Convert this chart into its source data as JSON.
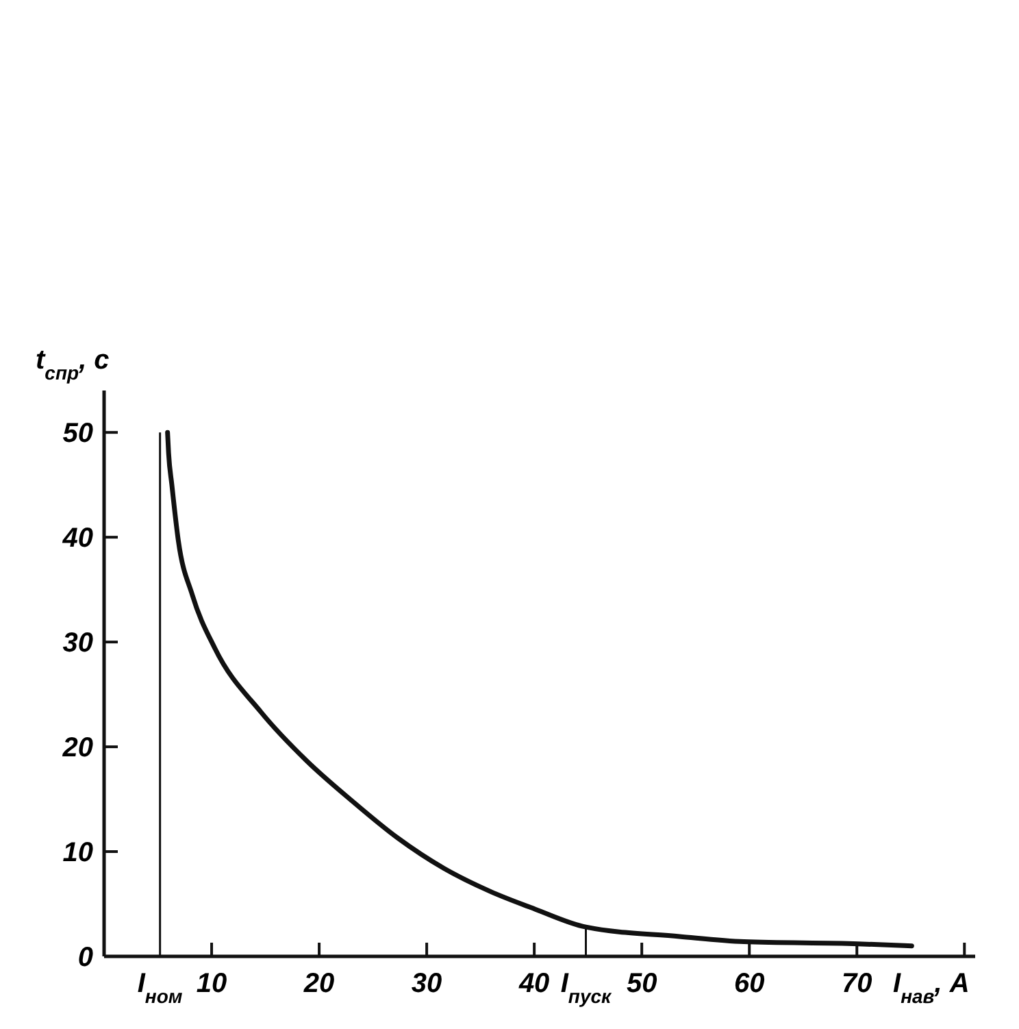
{
  "chart_data": {
    "type": "line",
    "xlabel": "I$_{нав}$, A",
    "ylabel": "t$_{спр}$, c",
    "series": [
      {
        "color": "#111111",
        "x": [
          5.9,
          6.0,
          6.3,
          6.9,
          8.2,
          10.3,
          14.6,
          18.8,
          23.1,
          27.3,
          31.6,
          35.9,
          40.1,
          44.8,
          53.5,
          59.5,
          70.1,
          75.1
        ],
        "values": [
          50,
          48,
          45,
          39.7,
          34.5,
          29.4,
          23.3,
          18.7,
          14.8,
          11.3,
          8.4,
          6.2,
          4.5,
          2.8,
          1.9,
          1.4,
          1.2,
          1.0
        ]
      }
    ],
    "xlim": [
      0,
      81
    ],
    "ylim": [
      0,
      54
    ],
    "xticks": [
      10,
      20,
      30,
      40,
      50,
      60,
      70,
      {
        "value": 80,
        "label": null
      }
    ],
    "yticks": [
      0,
      10,
      20,
      30,
      40,
      50
    ],
    "ref_lines": [
      {
        "axis": "x",
        "value": 5.2,
        "label": "I$_{ном}$",
        "color": "#111111"
      },
      {
        "axis": "x",
        "value": 44.8,
        "label": "I$_{пуск}$",
        "color": "#111111"
      }
    ],
    "grid": false,
    "marker": "none",
    "line_style": "solid"
  }
}
